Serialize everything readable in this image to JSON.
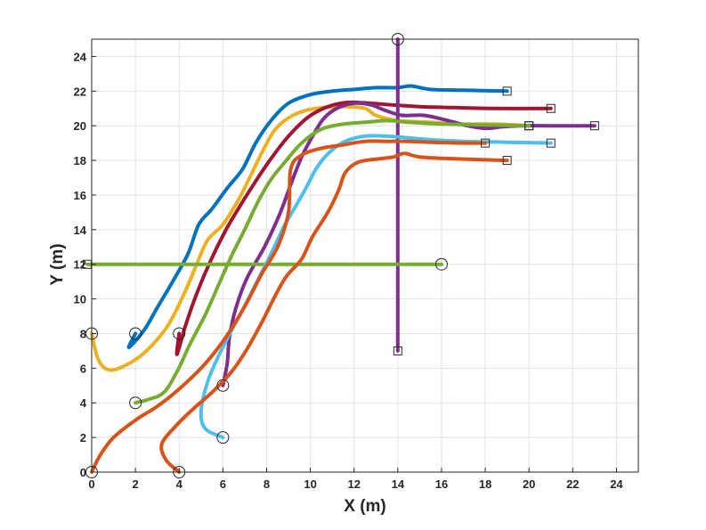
{
  "chart_data": {
    "type": "line",
    "title": "",
    "xlabel": "X (m)",
    "ylabel": "Y (m)",
    "xlim": [
      0,
      25
    ],
    "ylim": [
      0,
      25
    ],
    "xticks": [
      0,
      2,
      4,
      6,
      8,
      10,
      12,
      14,
      16,
      18,
      20,
      22,
      24
    ],
    "yticks": [
      0,
      2,
      4,
      6,
      8,
      10,
      12,
      14,
      16,
      18,
      20,
      22,
      24
    ],
    "grid": true,
    "series": [
      {
        "name": "blue",
        "color": "#0072BD",
        "start": [
          2,
          8
        ],
        "end": [
          19,
          22
        ],
        "points": [
          [
            2,
            8
          ],
          [
            1.7,
            7.2
          ],
          [
            2.4,
            8.2
          ],
          [
            3,
            9.5
          ],
          [
            3.7,
            11
          ],
          [
            4.4,
            12.6
          ],
          [
            4.9,
            14.3
          ],
          [
            5.5,
            15.2
          ],
          [
            6.2,
            16.4
          ],
          [
            6.9,
            17.5
          ],
          [
            7.5,
            19
          ],
          [
            8.2,
            20.3
          ],
          [
            9,
            21.3
          ],
          [
            10,
            21.8
          ],
          [
            11,
            22
          ],
          [
            12,
            22.1
          ],
          [
            13,
            22.2
          ],
          [
            14,
            22.2
          ],
          [
            14.6,
            22.3
          ],
          [
            15.5,
            22.1
          ],
          [
            17,
            22.05
          ],
          [
            19,
            22
          ]
        ]
      },
      {
        "name": "yellow",
        "color": "#EDB120",
        "start": [
          0,
          8
        ],
        "end": [
          20,
          20
        ],
        "points": [
          [
            0,
            8
          ],
          [
            0.3,
            6.5
          ],
          [
            0.8,
            5.9
          ],
          [
            1.6,
            6.2
          ],
          [
            2.5,
            7
          ],
          [
            3.5,
            8.5
          ],
          [
            4.3,
            10.5
          ],
          [
            4.8,
            12
          ],
          [
            5.3,
            13.4
          ],
          [
            6,
            14.3
          ],
          [
            6.7,
            15.7
          ],
          [
            7.3,
            17.2
          ],
          [
            7.8,
            18.5
          ],
          [
            8.4,
            19.8
          ],
          [
            9.2,
            20.6
          ],
          [
            10.2,
            21
          ],
          [
            11.5,
            21.1
          ],
          [
            12.5,
            21
          ],
          [
            13,
            20.6
          ],
          [
            14,
            20.3
          ],
          [
            15.5,
            20.2
          ],
          [
            17,
            20.1
          ],
          [
            18.5,
            20.1
          ],
          [
            20,
            20
          ]
        ]
      },
      {
        "name": "dark-red",
        "color": "#A2142F",
        "start": [
          4,
          8
        ],
        "end": [
          21,
          21
        ],
        "points": [
          [
            4,
            8
          ],
          [
            3.9,
            6.8
          ],
          [
            4.3,
            8.5
          ],
          [
            4.8,
            10.3
          ],
          [
            5.4,
            12.1
          ],
          [
            6.1,
            13.9
          ],
          [
            6.8,
            15.4
          ],
          [
            7.5,
            16.8
          ],
          [
            8.2,
            18.1
          ],
          [
            9,
            19.4
          ],
          [
            9.9,
            20.5
          ],
          [
            10.8,
            21.1
          ],
          [
            11.7,
            21.35
          ],
          [
            12.7,
            21.3
          ],
          [
            13.8,
            21.2
          ],
          [
            15,
            21.1
          ],
          [
            16.5,
            21.05
          ],
          [
            18.5,
            21
          ],
          [
            21,
            21
          ]
        ]
      },
      {
        "name": "purple",
        "color": "#7E2F8E",
        "start": [
          6,
          5
        ],
        "end": [
          23,
          20
        ],
        "points": [
          [
            6,
            5
          ],
          [
            6.2,
            6.3
          ],
          [
            6.3,
            7.8
          ],
          [
            6.6,
            9.5
          ],
          [
            7.1,
            11.2
          ],
          [
            7.9,
            13
          ],
          [
            8.6,
            14.9
          ],
          [
            9.1,
            16.6
          ],
          [
            9.6,
            18.2
          ],
          [
            10.1,
            19.4
          ],
          [
            10.6,
            20.4
          ],
          [
            11.2,
            21
          ],
          [
            12,
            21.3
          ],
          [
            12.8,
            21.2
          ],
          [
            13.4,
            20.9
          ],
          [
            14.2,
            20.6
          ],
          [
            15.2,
            20.6
          ],
          [
            16.3,
            20.3
          ],
          [
            17.2,
            20
          ],
          [
            18,
            19.85
          ],
          [
            18.8,
            19.95
          ],
          [
            19.6,
            20
          ],
          [
            21,
            20
          ],
          [
            23,
            20
          ]
        ]
      },
      {
        "name": "purple-vertical",
        "color": "#7E2F8E",
        "start": [
          14,
          25
        ],
        "end": [
          14,
          7
        ],
        "points": [
          [
            14,
            25
          ],
          [
            14,
            7
          ]
        ]
      },
      {
        "name": "green",
        "color": "#77AC30",
        "start": [
          2,
          4
        ],
        "end": [
          20,
          20
        ],
        "points": [
          [
            2,
            4
          ],
          [
            2.6,
            4.2
          ],
          [
            3.3,
            4.6
          ],
          [
            3.9,
            5.8
          ],
          [
            4.5,
            7.4
          ],
          [
            5.2,
            9.1
          ],
          [
            5.8,
            10.8
          ],
          [
            6.4,
            12.5
          ],
          [
            7,
            14
          ],
          [
            7.6,
            15.6
          ],
          [
            8.2,
            16.9
          ],
          [
            8.9,
            18
          ],
          [
            9.6,
            19
          ],
          [
            10.5,
            19.8
          ],
          [
            11.5,
            20.1
          ],
          [
            12.5,
            20.2
          ],
          [
            13.5,
            20.3
          ],
          [
            14.5,
            20.2
          ],
          [
            16,
            20.1
          ],
          [
            18,
            20.05
          ],
          [
            20,
            20
          ]
        ]
      },
      {
        "name": "green-horizontal",
        "color": "#77AC30",
        "start": [
          16,
          12
        ],
        "end": [
          -0.2,
          12
        ],
        "points": [
          [
            16,
            12
          ],
          [
            -0.2,
            12
          ]
        ]
      },
      {
        "name": "light-blue",
        "color": "#4DBEEE",
        "start": [
          6,
          2
        ],
        "end": [
          21,
          19
        ],
        "points": [
          [
            6,
            2
          ],
          [
            5.2,
            2.5
          ],
          [
            5,
            3.5
          ],
          [
            5.3,
            5.2
          ],
          [
            5.8,
            6.7
          ],
          [
            6.4,
            8.2
          ],
          [
            7,
            9.6
          ],
          [
            7.6,
            11.1
          ],
          [
            8.2,
            12.6
          ],
          [
            8.8,
            14.2
          ],
          [
            9.3,
            15.3
          ],
          [
            9.8,
            16.4
          ],
          [
            10.3,
            17.6
          ],
          [
            10.9,
            18.5
          ],
          [
            11.6,
            19.1
          ],
          [
            12.5,
            19.4
          ],
          [
            13.5,
            19.4
          ],
          [
            14.5,
            19.3
          ],
          [
            15.5,
            19.2
          ],
          [
            17,
            19.1
          ],
          [
            19,
            19.05
          ],
          [
            21,
            19
          ]
        ]
      },
      {
        "name": "orange-a",
        "color": "#D95319",
        "start": [
          0,
          0
        ],
        "end": [
          18,
          19
        ],
        "points": [
          [
            0,
            0
          ],
          [
            0.4,
            1
          ],
          [
            1,
            2
          ],
          [
            2,
            3
          ],
          [
            3,
            3.8
          ],
          [
            4,
            4.8
          ],
          [
            5,
            6
          ],
          [
            5.8,
            7.2
          ],
          [
            6.5,
            8.5
          ],
          [
            7.1,
            9.8
          ],
          [
            7.8,
            11.5
          ],
          [
            8.5,
            13
          ],
          [
            9,
            15
          ],
          [
            9.1,
            17.5
          ],
          [
            9.6,
            18.3
          ],
          [
            10.5,
            18.7
          ],
          [
            11.5,
            18.9
          ],
          [
            12.5,
            19.1
          ],
          [
            13.5,
            19.1
          ],
          [
            14.5,
            19.1
          ],
          [
            15.5,
            19.05
          ],
          [
            17,
            19
          ],
          [
            18,
            19
          ]
        ]
      },
      {
        "name": "orange-b",
        "color": "#D95319",
        "start": [
          4,
          0
        ],
        "end": [
          19,
          18
        ],
        "points": [
          [
            4,
            0
          ],
          [
            3.4,
            0.7
          ],
          [
            3.2,
            1.6
          ],
          [
            3.8,
            2.6
          ],
          [
            4.6,
            3.6
          ],
          [
            5.5,
            4.6
          ],
          [
            6.4,
            5.8
          ],
          [
            7.1,
            7.1
          ],
          [
            7.8,
            8.7
          ],
          [
            8.4,
            10.2
          ],
          [
            8.9,
            11.3
          ],
          [
            9.6,
            12.3
          ],
          [
            10.1,
            13.6
          ],
          [
            10.8,
            15
          ],
          [
            11.3,
            16.3
          ],
          [
            11.6,
            17.3
          ],
          [
            12.2,
            17.9
          ],
          [
            13.2,
            18.1
          ],
          [
            13.8,
            18.2
          ],
          [
            14.3,
            18.4
          ],
          [
            15,
            18.2
          ],
          [
            16.5,
            18.1
          ],
          [
            19,
            18
          ]
        ]
      }
    ]
  }
}
